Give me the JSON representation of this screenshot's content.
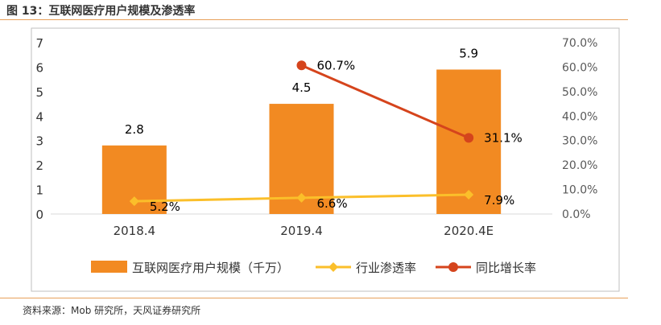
{
  "figure": {
    "title": "图 13：互联网医疗用户规模及渗透率",
    "source": "资料来源：Mob 研究所，天风证券研究所"
  },
  "colors": {
    "bar": "#f28a22",
    "penetration": "#fbbf2a",
    "growth": "#d5441c",
    "rule": "#e8a05a",
    "frame": "#bfbfbf",
    "text": "#333333"
  },
  "chart_data": {
    "type": "bar",
    "categories": [
      "2018.4",
      "2019.4",
      "2020.4E"
    ],
    "series": [
      {
        "name": "互联网医疗用户规模（千万）",
        "type": "bar",
        "axis": "left",
        "values": [
          2.8,
          4.5,
          5.9
        ],
        "labels": [
          "2.8",
          "4.5",
          "5.9"
        ]
      },
      {
        "name": "行业渗透率",
        "type": "line",
        "axis": "right",
        "marker": "diamond",
        "values": [
          5.2,
          6.6,
          7.9
        ],
        "labels": [
          "5.2%",
          "6.6%",
          "7.9%"
        ]
      },
      {
        "name": "同比增长率",
        "type": "line",
        "axis": "right",
        "marker": "circle",
        "values": [
          null,
          60.7,
          31.1
        ],
        "labels": [
          "",
          "60.7%",
          "31.1%"
        ]
      }
    ],
    "y_left": {
      "min": 0,
      "max": 7,
      "ticks": [
        "0",
        "1",
        "2",
        "3",
        "4",
        "5",
        "6",
        "7"
      ]
    },
    "y_right": {
      "min": 0,
      "max": 70,
      "ticks": [
        "0.0%",
        "10.0%",
        "20.0%",
        "30.0%",
        "40.0%",
        "50.0%",
        "60.0%",
        "70.0%"
      ]
    },
    "grid": false,
    "legend_position": "bottom"
  }
}
